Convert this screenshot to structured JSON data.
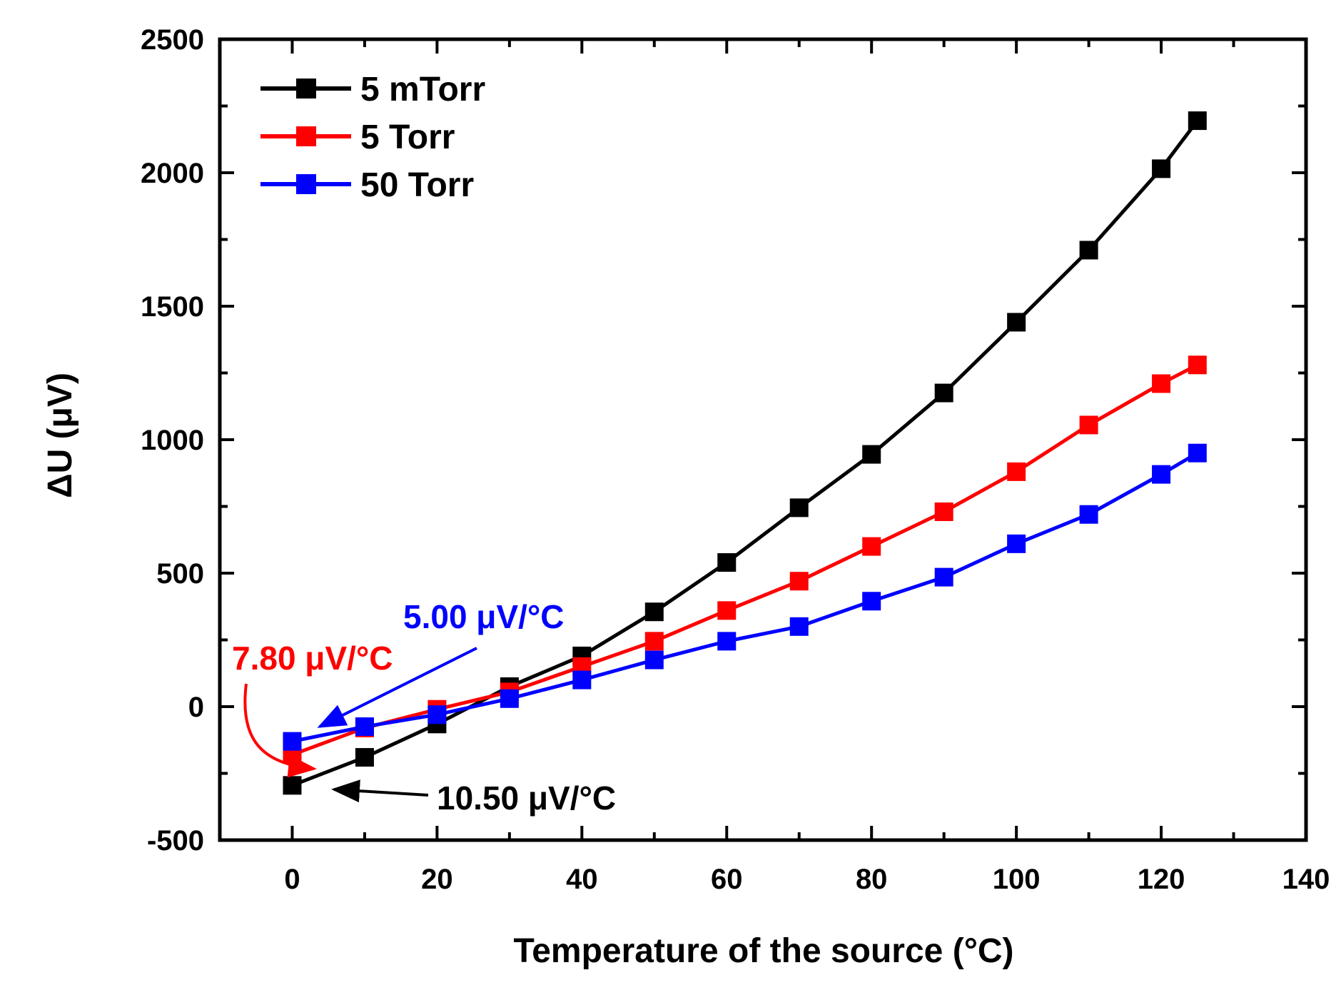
{
  "chart_data": {
    "type": "line",
    "title": "",
    "xlabel": "Temperature of the source (°C)",
    "ylabel": "ΔU (μV)",
    "xlim": [
      -10,
      140
    ],
    "ylim": [
      -500,
      2500
    ],
    "xticks": [
      0,
      20,
      40,
      60,
      80,
      100,
      120,
      140
    ],
    "yticks": [
      -500,
      0,
      500,
      1000,
      1500,
      2000,
      2500
    ],
    "legend_position": "top-left",
    "series": [
      {
        "name": "5 mTorr",
        "color": "#000000",
        "x": [
          0,
          10,
          20,
          30,
          40,
          50,
          60,
          70,
          80,
          90,
          100,
          110,
          120,
          125
        ],
        "y": [
          -295,
          -190,
          -65,
          75,
          190,
          355,
          540,
          745,
          945,
          1175,
          1440,
          1710,
          2015,
          2195
        ]
      },
      {
        "name": "5 Torr",
        "color": "#ff0000",
        "x": [
          0,
          10,
          20,
          30,
          40,
          50,
          60,
          70,
          80,
          90,
          100,
          110,
          120,
          125
        ],
        "y": [
          -180,
          -80,
          -10,
          55,
          150,
          245,
          360,
          470,
          600,
          730,
          880,
          1055,
          1210,
          1280
        ]
      },
      {
        "name": "50 Torr",
        "color": "#0000ff",
        "x": [
          0,
          10,
          20,
          30,
          40,
          50,
          60,
          70,
          80,
          90,
          100,
          110,
          120,
          125
        ],
        "y": [
          -130,
          -75,
          -30,
          30,
          100,
          175,
          245,
          300,
          395,
          485,
          610,
          720,
          870,
          950
        ]
      }
    ],
    "annotations": [
      {
        "text": "5.00 μV/°C",
        "color": "#0000ff"
      },
      {
        "text": "7.80 μV/°C",
        "color": "#ff0000"
      },
      {
        "text": "10.50 μV/°C",
        "color": "#000000"
      }
    ]
  }
}
